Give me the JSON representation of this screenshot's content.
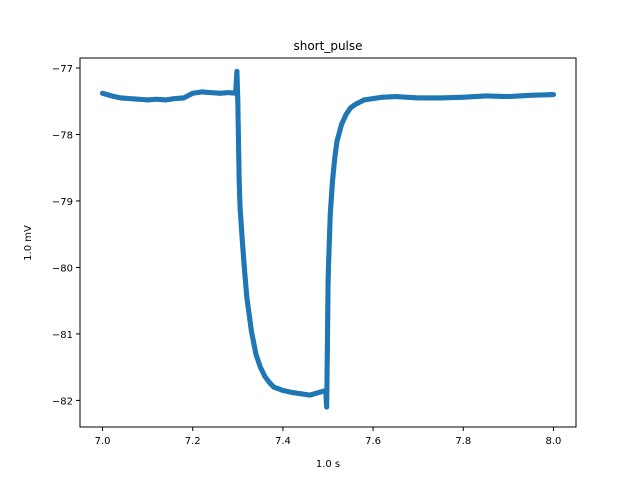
{
  "chart_data": {
    "type": "scatter",
    "title": "short_pulse",
    "xlabel": "1.0 s",
    "ylabel": "1.0 mV",
    "xlim": [
      6.95,
      8.05
    ],
    "ylim": [
      -82.4,
      -76.85
    ],
    "xticks": [
      7.0,
      7.2,
      7.4,
      7.6,
      7.8,
      8.0
    ],
    "xtick_labels": [
      "7.0",
      "7.2",
      "7.4",
      "7.6",
      "7.8",
      "8.0"
    ],
    "yticks": [
      -82,
      -81,
      -80,
      -79,
      -78,
      -77
    ],
    "ytick_labels": [
      "−82",
      "−81",
      "−80",
      "−79",
      "−78",
      "−77"
    ],
    "grid": false,
    "color": "#1f77b4",
    "series": [
      {
        "x": [
          7.0,
          7.02,
          7.04,
          7.06,
          7.08,
          7.1,
          7.12,
          7.14,
          7.16,
          7.18,
          7.2,
          7.22,
          7.24,
          7.26,
          7.28,
          7.295,
          7.298,
          7.3,
          7.301,
          7.302,
          7.303,
          7.305,
          7.31,
          7.315,
          7.32,
          7.33,
          7.34,
          7.35,
          7.36,
          7.37,
          7.38,
          7.4,
          7.42,
          7.44,
          7.46,
          7.48,
          7.49,
          7.495,
          7.497,
          7.499,
          7.5,
          7.501,
          7.503,
          7.505,
          7.51,
          7.515,
          7.52,
          7.53,
          7.54,
          7.55,
          7.56,
          7.58,
          7.6,
          7.62,
          7.65,
          7.7,
          7.75,
          7.8,
          7.85,
          7.9,
          7.95,
          8.0
        ],
        "y": [
          -77.38,
          -77.42,
          -77.45,
          -77.46,
          -77.47,
          -77.48,
          -77.47,
          -77.48,
          -77.46,
          -77.45,
          -77.38,
          -77.36,
          -77.37,
          -77.38,
          -77.37,
          -77.38,
          -77.05,
          -77.5,
          -77.9,
          -78.3,
          -78.7,
          -79.1,
          -79.6,
          -80.05,
          -80.45,
          -80.95,
          -81.3,
          -81.5,
          -81.64,
          -81.73,
          -81.8,
          -81.85,
          -81.88,
          -81.9,
          -81.92,
          -81.88,
          -81.86,
          -81.85,
          -82.1,
          -81.0,
          -80.3,
          -80.0,
          -79.6,
          -79.2,
          -78.7,
          -78.35,
          -78.1,
          -77.85,
          -77.7,
          -77.6,
          -77.55,
          -77.48,
          -77.46,
          -77.44,
          -77.43,
          -77.45,
          -77.45,
          -77.44,
          -77.42,
          -77.43,
          -77.41,
          -77.4
        ]
      }
    ]
  }
}
